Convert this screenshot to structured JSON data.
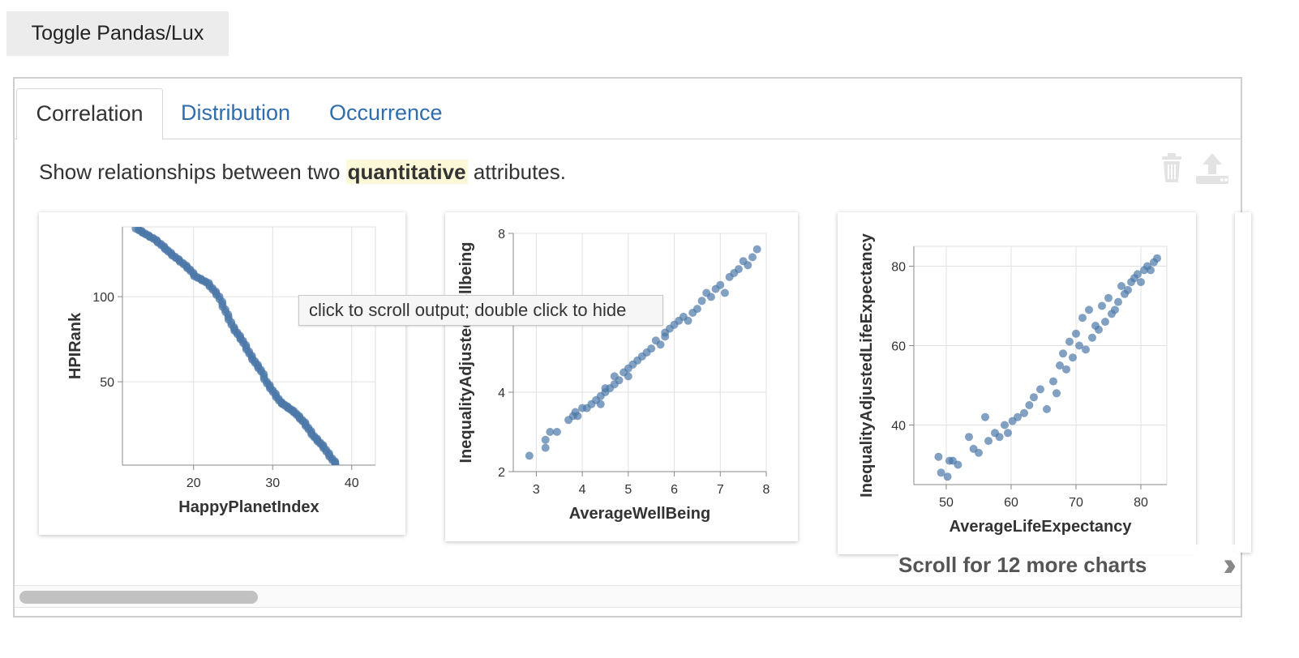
{
  "toggle_label": "Toggle Pandas/Lux",
  "tabs": [
    {
      "label": "Correlation",
      "active": true
    },
    {
      "label": "Distribution",
      "active": false
    },
    {
      "label": "Occurrence",
      "active": false
    }
  ],
  "description": {
    "before": "Show relationships between two ",
    "highlight": "quantitative",
    "after": " attributes."
  },
  "icons": {
    "delete": "trash-icon",
    "export": "upload-icon"
  },
  "tooltip": "click to scroll output; double click to hide",
  "scroll_hint": "Scroll for 12 more charts",
  "colors": {
    "point": "#4c78a8",
    "tab_link": "#2f6dac",
    "highlight": "#fdf8d8"
  },
  "chart_data": [
    {
      "type": "scatter",
      "xlabel": "HappyPlanetIndex",
      "ylabel": "HPIRank",
      "xlim": [
        11,
        43
      ],
      "ylim": [
        1,
        141
      ],
      "xticks": [
        20,
        30,
        40
      ],
      "yticks": [
        50,
        100
      ],
      "grid": true,
      "points": "monotonic_decreasing",
      "x": [
        12.8,
        13.5,
        14.2,
        15.0,
        15.8,
        16.5,
        17.2,
        18.0,
        18.8,
        19.5,
        20.2,
        21.0,
        21.8,
        22.5,
        23.2,
        23.8,
        24.4,
        25.0,
        25.6,
        26.2,
        26.8,
        27.4,
        28.0,
        28.6,
        29.2,
        29.8,
        30.4,
        31.0,
        31.6,
        32.2,
        32.8,
        33.4,
        34.0,
        34.6,
        35.2,
        35.8,
        36.4,
        37.0,
        37.6,
        38.2
      ],
      "y": [
        140,
        138,
        136,
        134,
        131,
        128,
        125,
        122,
        119,
        116,
        112,
        110,
        108,
        104,
        100,
        94,
        88,
        82,
        78,
        74,
        69,
        64,
        60,
        56,
        50,
        46,
        42,
        38,
        36,
        34,
        32,
        29,
        26,
        22,
        18,
        15,
        12,
        8,
        4,
        1
      ]
    },
    {
      "type": "scatter",
      "xlabel": "AverageWellBeing",
      "ylabel": "InequalityAdjustedWellbeing",
      "xlim": [
        2.5,
        8
      ],
      "ylim": [
        2,
        8
      ],
      "xticks": [
        3,
        4,
        5,
        6,
        7,
        8
      ],
      "yticks": [
        2,
        4,
        8
      ],
      "grid": true,
      "x": [
        2.85,
        3.2,
        3.2,
        3.3,
        3.45,
        3.7,
        3.8,
        3.85,
        3.9,
        4.0,
        4.1,
        4.2,
        4.3,
        4.4,
        4.4,
        4.5,
        4.5,
        4.6,
        4.7,
        4.7,
        4.8,
        4.9,
        5.0,
        5.0,
        5.1,
        5.2,
        5.3,
        5.4,
        5.5,
        5.6,
        5.7,
        5.8,
        5.8,
        5.9,
        6.0,
        6.1,
        6.2,
        6.3,
        6.4,
        6.5,
        6.6,
        6.7,
        6.8,
        6.9,
        7.0,
        7.1,
        7.2,
        7.3,
        7.4,
        7.5,
        7.6,
        7.7,
        7.8
      ],
      "y": [
        2.4,
        2.6,
        2.8,
        3.0,
        3.0,
        3.3,
        3.4,
        3.5,
        3.4,
        3.6,
        3.6,
        3.7,
        3.8,
        3.9,
        3.7,
        4.0,
        4.1,
        4.1,
        4.2,
        4.4,
        4.3,
        4.5,
        4.6,
        4.4,
        4.7,
        4.8,
        4.9,
        5.0,
        5.1,
        5.3,
        5.2,
        5.4,
        5.5,
        5.6,
        5.7,
        5.8,
        5.9,
        5.8,
        6.0,
        6.1,
        6.3,
        6.5,
        6.4,
        6.6,
        6.7,
        6.5,
        6.9,
        7.0,
        7.1,
        7.3,
        7.2,
        7.4,
        7.6
      ]
    },
    {
      "type": "scatter",
      "xlabel": "AverageLifeExpectancy",
      "ylabel": "InequalityAdjustedLifeExpectancy",
      "xlim": [
        45,
        84
      ],
      "ylim": [
        25,
        85
      ],
      "xticks": [
        50,
        60,
        70,
        80
      ],
      "yticks": [
        40,
        60,
        80
      ],
      "grid": true,
      "x": [
        48.8,
        49.2,
        50.2,
        50.5,
        51.0,
        51.8,
        53.5,
        54.2,
        55.0,
        56.0,
        56.5,
        57.5,
        58.2,
        59.0,
        59.5,
        60.2,
        61.0,
        62.0,
        62.8,
        63.5,
        64.5,
        65.5,
        66.5,
        67.0,
        67.5,
        68.0,
        68.5,
        69.0,
        69.5,
        70.0,
        70.5,
        71.0,
        71.5,
        72.0,
        72.5,
        73.0,
        73.5,
        74.0,
        74.5,
        75.0,
        75.5,
        76.0,
        76.5,
        77.0,
        77.5,
        78.0,
        78.5,
        79.0,
        79.5,
        80.0,
        80.5,
        81.0,
        81.5,
        82.0,
        82.5
      ],
      "y": [
        32,
        28,
        27,
        31,
        31,
        30,
        37,
        34,
        33,
        42,
        36,
        38,
        37,
        40,
        38,
        41,
        42,
        43,
        45,
        47,
        49,
        44,
        51,
        48,
        55,
        58,
        54,
        61,
        57,
        63,
        60,
        67,
        59,
        69,
        62,
        65,
        64,
        70,
        66,
        72,
        68,
        69,
        71,
        75,
        73,
        74,
        76,
        77,
        78,
        76,
        79,
        80,
        79,
        81,
        82
      ]
    }
  ]
}
